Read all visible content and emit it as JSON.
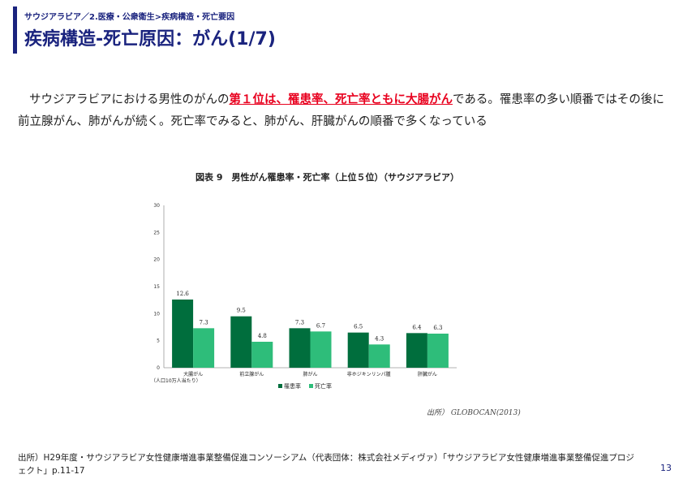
{
  "slide": {
    "breadcrumb": "サウジアラビア／2.医療・公衆衛生>疾病構造・死亡要因",
    "title": "疾病構造-死亡原因：がん(1/7)",
    "body_before": "サウジアラビアにおける男性のがんの",
    "body_highlight": "第１位は、罹患率、死亡率ともに大腸がん",
    "body_after": "である。罹患率の多い順番ではその後に前立腺がん、肺がんが続く。死亡率でみると、肺がん、肝臓がんの順番で多くなっている",
    "footnote": "出所）H29年度・サウジアラビア女性健康増進事業整備促進コンソーシアム（代表団体：株式会社メディヴァ）「サウジアラビア女性健康増進事業整備促進プロジェクト」p.11-17",
    "page_number": "13"
  },
  "colors": {
    "accent": "#1a237e",
    "highlight": "#e8001e",
    "incidence": "#006e3d",
    "mortality": "#2ebd7a"
  },
  "chart_data": {
    "type": "bar",
    "title": "図表 9　男性がん罹患率・死亡率（上位５位）（サウジアラビア）",
    "categories": [
      "大腸がん",
      "前立腺がん",
      "肺がん",
      "非ホジキンリンパ腫",
      "肝臓がん"
    ],
    "series": [
      {
        "name": "罹患率",
        "values": [
          12.6,
          9.5,
          7.3,
          6.5,
          6.4
        ]
      },
      {
        "name": "死亡率",
        "values": [
          7.3,
          4.8,
          6.7,
          4.3,
          6.3
        ]
      }
    ],
    "value_labels": [
      [
        "12.6",
        "9.5",
        "7.3",
        "6.5",
        "6.4"
      ],
      [
        "7.3",
        "4.8",
        "6.7",
        "4.3",
        "6.3"
      ]
    ],
    "yticks": [
      "0",
      "5",
      "10",
      "15",
      "20",
      "25",
      "30"
    ],
    "ylim": [
      0,
      30
    ],
    "unit_note": "（人口10万人当たり）",
    "source": "出所） GLOBOCAN(2013)",
    "legend_position": "bottom",
    "grid": false
  }
}
